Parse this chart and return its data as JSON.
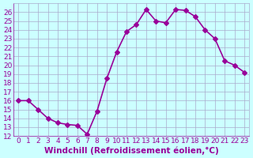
{
  "x": [
    0,
    1,
    2,
    3,
    4,
    5,
    6,
    7,
    8,
    9,
    10,
    11,
    12,
    13,
    14,
    15,
    16,
    17,
    18,
    19,
    20,
    21,
    22,
    23
  ],
  "y": [
    16,
    16,
    15,
    14,
    13.5,
    13.3,
    13.2,
    12.2,
    14.8,
    18.5,
    21.5,
    23.8,
    24.6,
    26.3,
    25,
    24.8,
    26.3,
    26.2,
    25.5,
    24,
    23,
    20.5,
    20,
    19.2
  ],
  "line_color": "#990099",
  "marker": "D",
  "marker_size": 3,
  "linewidth": 1.2,
  "xlabel": "Windchill (Refroidissement éolien,°C)",
  "xlim": [
    -0.5,
    23.5
  ],
  "ylim": [
    12,
    27
  ],
  "yticks": [
    12,
    13,
    14,
    15,
    16,
    17,
    18,
    19,
    20,
    21,
    22,
    23,
    24,
    25,
    26
  ],
  "xticks": [
    0,
    1,
    2,
    3,
    4,
    5,
    6,
    7,
    8,
    9,
    10,
    11,
    12,
    13,
    14,
    15,
    16,
    17,
    18,
    19,
    20,
    21,
    22,
    23
  ],
  "bg_color": "#ccffff",
  "grid_color": "#aaaacc",
  "font_color": "#990099",
  "xlabel_fontsize": 7.5,
  "tick_fontsize": 6.5
}
